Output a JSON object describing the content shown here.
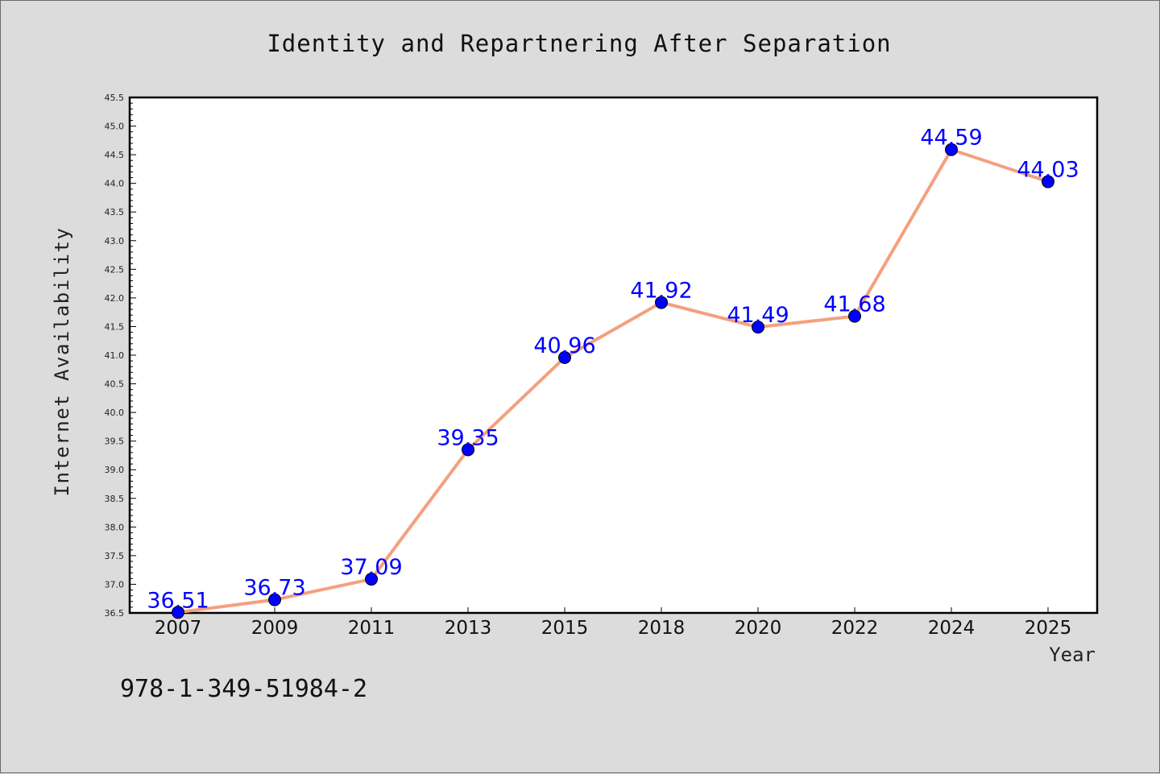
{
  "chart_data": {
    "type": "line",
    "title": "Identity and Repartnering After Separation",
    "xlabel": "Year",
    "ylabel": "Internet Availability",
    "categories": [
      "2007",
      "2009",
      "2011",
      "2013",
      "2015",
      "2018",
      "2020",
      "2022",
      "2024",
      "2025"
    ],
    "values": [
      36.51,
      36.73,
      37.09,
      39.35,
      40.96,
      41.92,
      41.49,
      41.68,
      44.59,
      44.03
    ],
    "data_labels": [
      "36.51",
      "36.73",
      "37.09",
      "39.35",
      "40.96",
      "41.92",
      "41.49",
      "41.68",
      "44.59",
      "44.03"
    ],
    "ylim": [
      36.5,
      45.5
    ],
    "yticks": [
      "36.5",
      "37.0",
      "37.5",
      "38.0",
      "38.5",
      "39.0",
      "39.5",
      "40.0",
      "40.5",
      "41.0",
      "41.5",
      "42.0",
      "42.5",
      "43.0",
      "43.5",
      "44.0",
      "44.5",
      "45.0",
      "45.5"
    ],
    "grid": false,
    "line_color": "#f4a07e",
    "marker_color": "#0000ff",
    "label_color": "#0000ff"
  },
  "footnote": "978-1-349-51984-2"
}
